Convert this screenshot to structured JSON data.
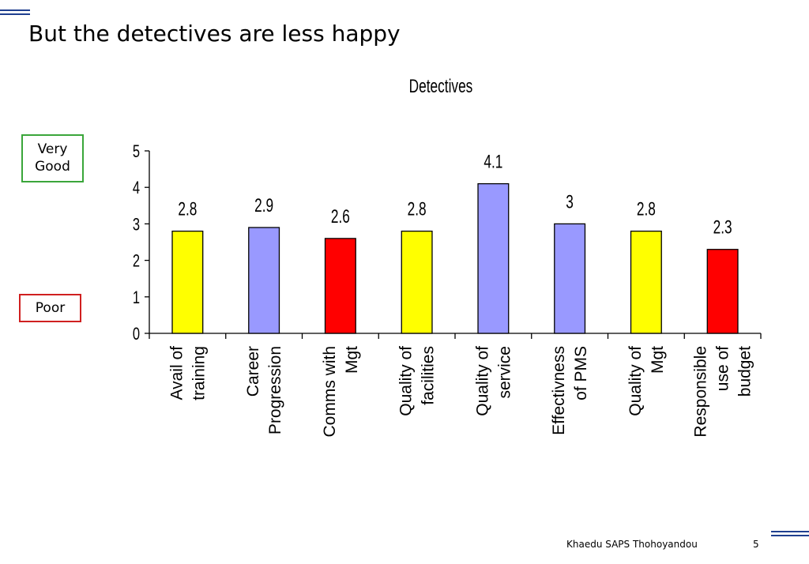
{
  "slide": {
    "title": "But the detectives are less happy",
    "badge_top": "Very Good",
    "badge_bottom": "Poor",
    "footer_credit": "Khaedu SAPS Thohoyandou",
    "footer_page": "5"
  },
  "colors": {
    "yellow": "#ffff00",
    "lavender": "#9999ff",
    "red": "#ff0000",
    "deco_blue": "#1f3f8f"
  },
  "chart_data": {
    "type": "bar",
    "title": "Detectives",
    "categories": [
      [
        "Avail of",
        "training"
      ],
      [
        "Career",
        "Progression"
      ],
      [
        "Comms with",
        "Mgt"
      ],
      [
        "Quality of",
        "facilities"
      ],
      [
        "Quality of",
        "service"
      ],
      [
        "Effectivness",
        "of PMS"
      ],
      [
        "Quality of",
        "Mgt"
      ],
      [
        "Responsible",
        "use of",
        "budget"
      ]
    ],
    "values": [
      2.8,
      2.9,
      2.6,
      2.8,
      4.1,
      3,
      2.8,
      2.3
    ],
    "value_labels": [
      "2.8",
      "2.9",
      "2.6",
      "2.8",
      "4.1",
      "3",
      "2.8",
      "2.3"
    ],
    "bar_colors": [
      "#ffff00",
      "#9999ff",
      "#ff0000",
      "#ffff00",
      "#9999ff",
      "#9999ff",
      "#ffff00",
      "#ff0000"
    ],
    "ylim": [
      0,
      5
    ],
    "yticks": [
      0,
      1,
      2,
      3,
      4,
      5
    ],
    "xlabel": "",
    "ylabel": "",
    "grid": false,
    "legend": false
  }
}
